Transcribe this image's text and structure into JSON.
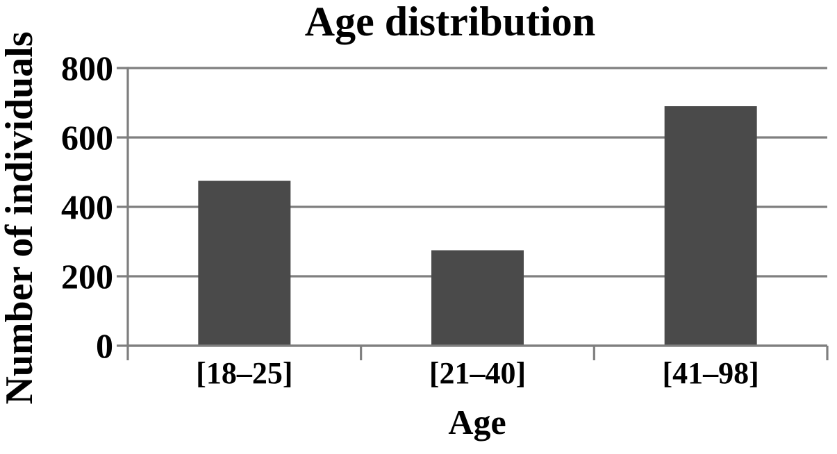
{
  "chart_data": {
    "type": "bar",
    "title": "Age distribution",
    "xlabel": "Age",
    "ylabel": "Number of individuals",
    "categories": [
      "[18–25]",
      "[21–40]",
      "[41–98]"
    ],
    "values": [
      475,
      275,
      690
    ],
    "ylim": [
      0,
      800
    ],
    "yticks": [
      0,
      200,
      400,
      600,
      800
    ],
    "grid": true,
    "legend": false,
    "colors": {
      "bar": "#4a4a4a",
      "grid": "#7f7f7f",
      "axis": "#7f7f7f",
      "text": "#000000",
      "background": "#ffffff"
    }
  }
}
